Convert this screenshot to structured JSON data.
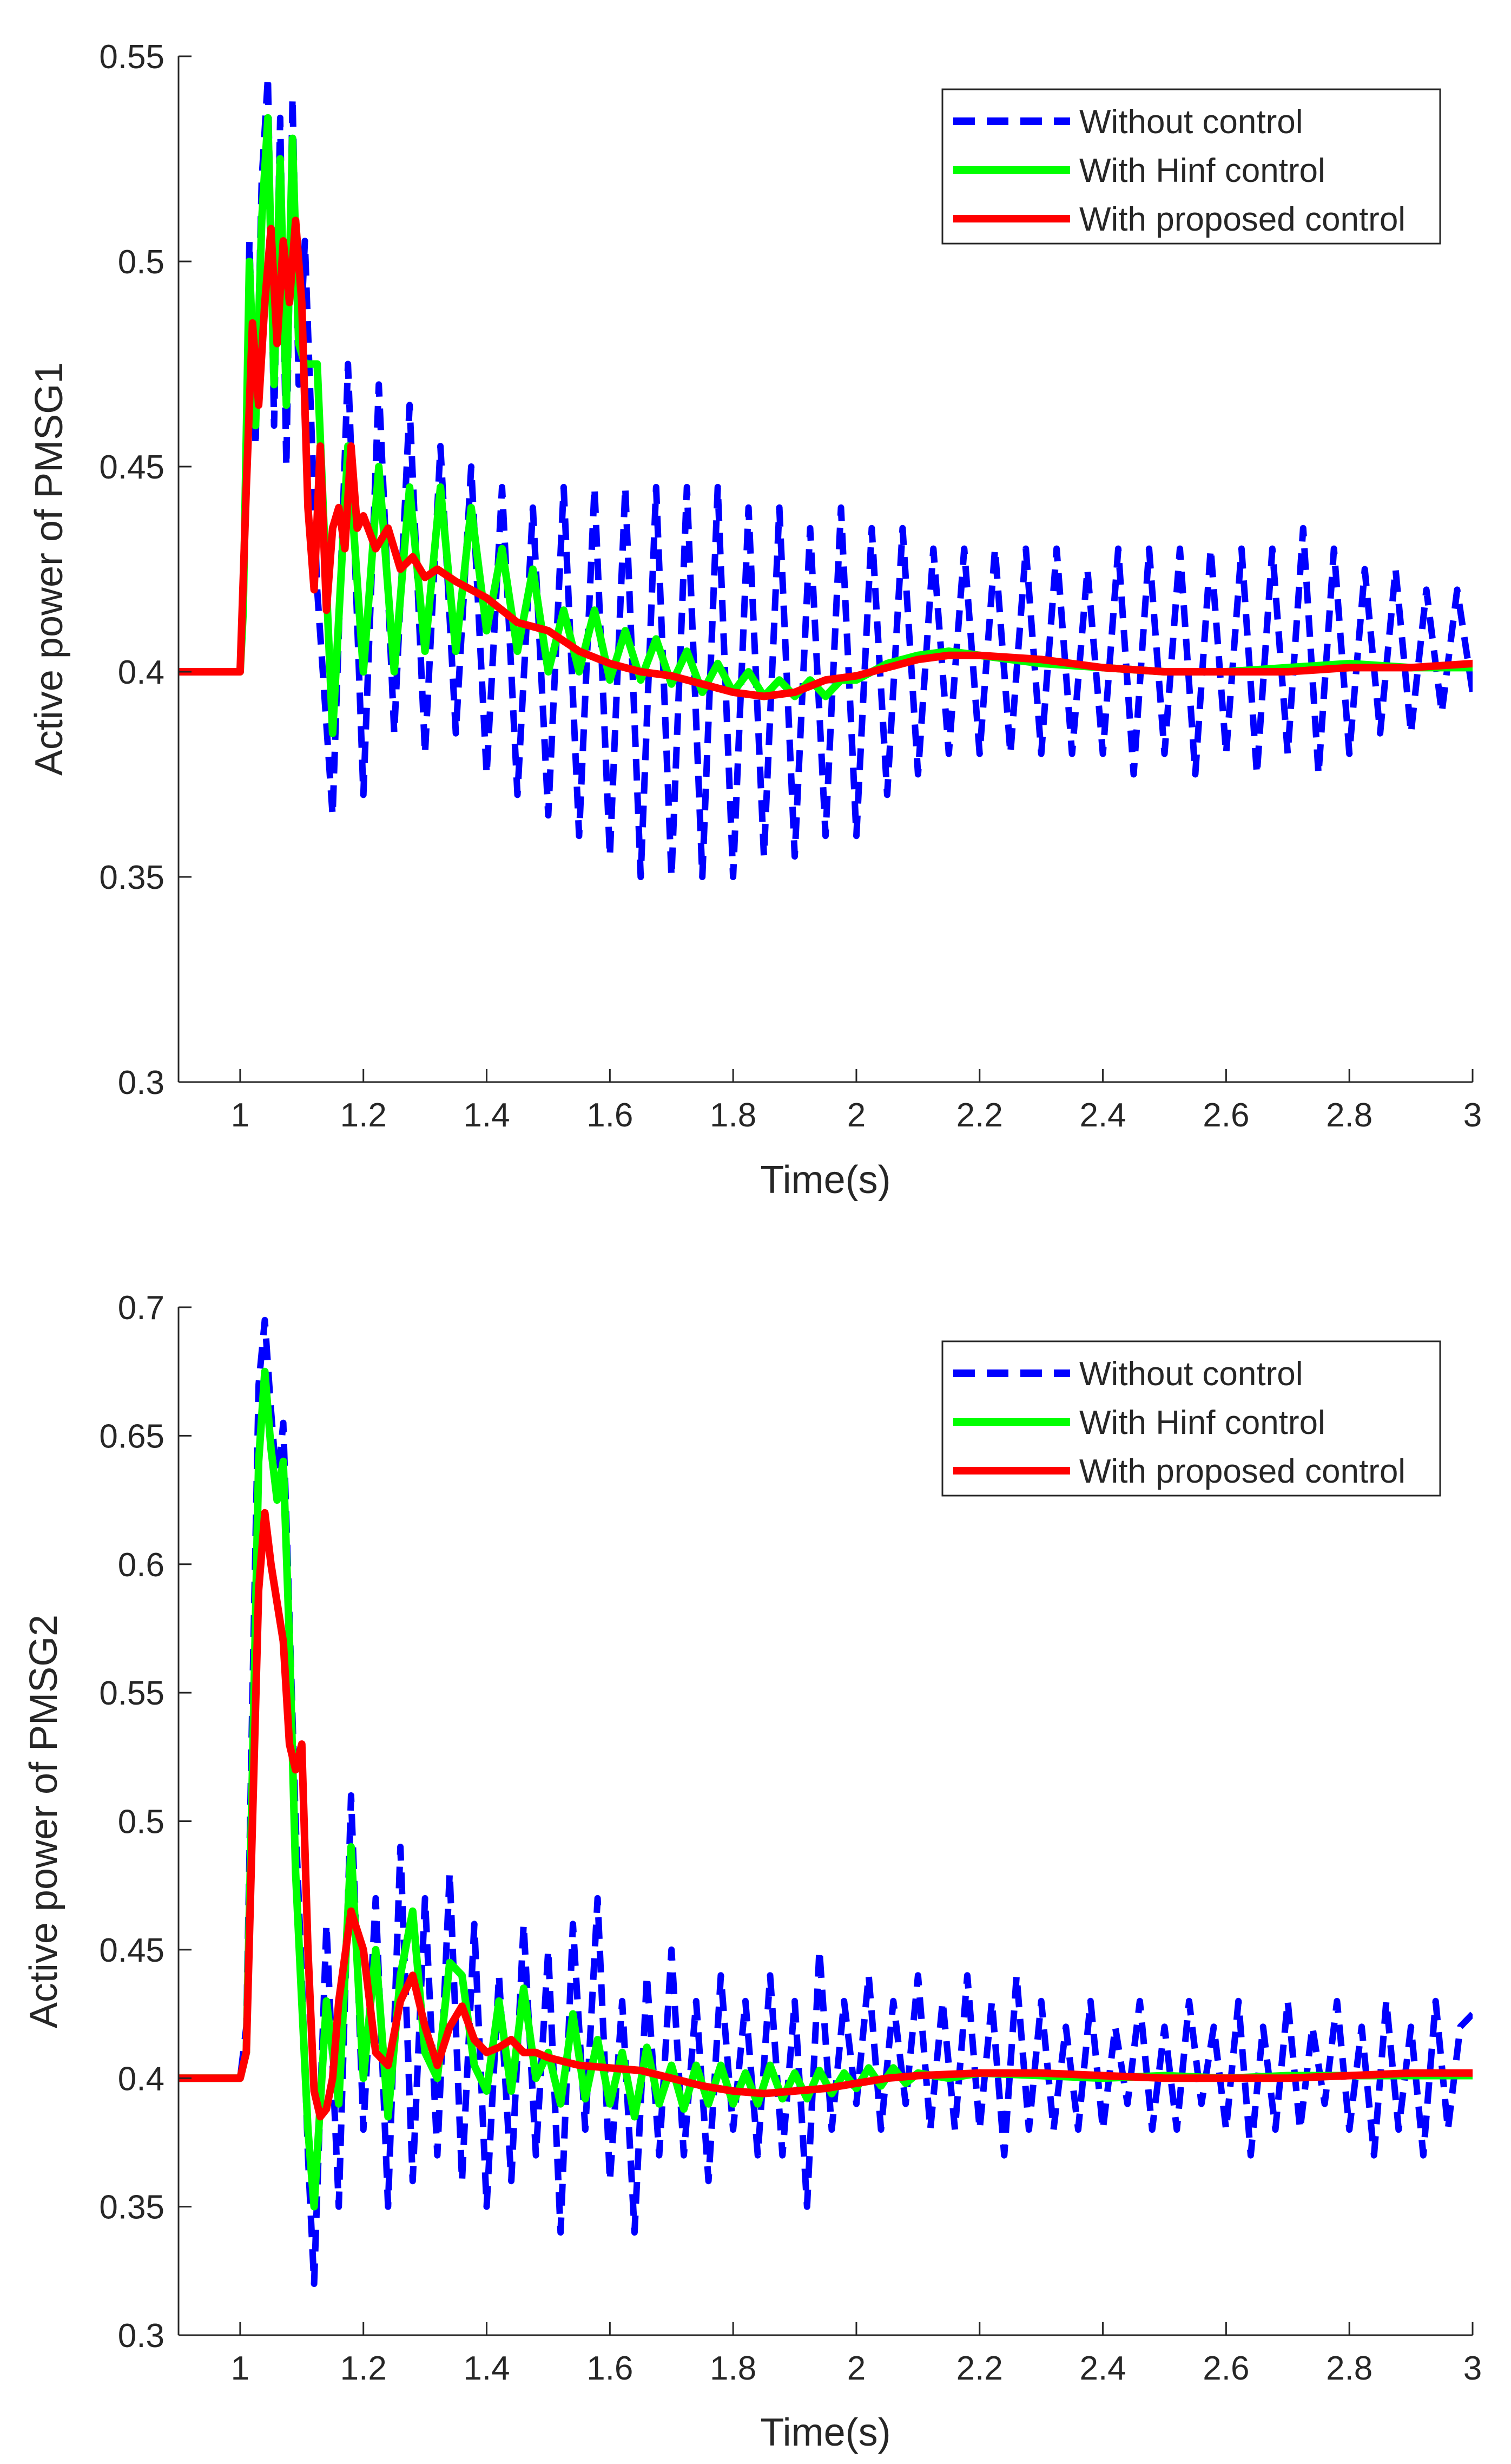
{
  "figure": {
    "background": "#ffffff"
  },
  "chart_data": [
    {
      "type": "line",
      "title": "",
      "xlabel": "Time(s)",
      "ylabel": "Active power of PMSG1",
      "xlim": [
        0.9,
        3.0
      ],
      "ylim": [
        0.3,
        0.55
      ],
      "xticks": [
        1,
        1.2,
        1.4,
        1.6,
        1.8,
        2,
        2.2,
        2.4,
        2.6,
        2.8,
        3
      ],
      "xtick_labels": [
        "1",
        "1.2",
        "1.4",
        "1.6",
        "1.8",
        "2",
        "2.2",
        "2.4",
        "2.6",
        "2.8",
        "3"
      ],
      "yticks": [
        0.3,
        0.35,
        0.4,
        0.45,
        0.5,
        0.55
      ],
      "ytick_labels": [
        "0.3",
        "0.35",
        "0.4",
        "0.45",
        "0.5",
        "0.55"
      ],
      "grid": false,
      "legend_position": "top-right",
      "series": [
        {
          "name": "Without control",
          "color": "#0000ff",
          "style": "dashed",
          "x": [
            0.9,
            1.0,
            1.005,
            1.015,
            1.025,
            1.035,
            1.045,
            1.055,
            1.065,
            1.075,
            1.085,
            1.095,
            1.105,
            1.125,
            1.15,
            1.175,
            1.2,
            1.225,
            1.25,
            1.275,
            1.3,
            1.325,
            1.35,
            1.375,
            1.4,
            1.425,
            1.45,
            1.475,
            1.5,
            1.525,
            1.55,
            1.575,
            1.6,
            1.625,
            1.65,
            1.675,
            1.7,
            1.725,
            1.75,
            1.775,
            1.8,
            1.825,
            1.85,
            1.875,
            1.9,
            1.925,
            1.95,
            1.975,
            2.0,
            2.025,
            2.05,
            2.075,
            2.1,
            2.125,
            2.15,
            2.175,
            2.2,
            2.225,
            2.25,
            2.275,
            2.3,
            2.325,
            2.35,
            2.375,
            2.4,
            2.425,
            2.45,
            2.475,
            2.5,
            2.525,
            2.55,
            2.575,
            2.6,
            2.625,
            2.65,
            2.675,
            2.7,
            2.725,
            2.75,
            2.775,
            2.8,
            2.825,
            2.85,
            2.875,
            2.9,
            2.925,
            2.95,
            2.975,
            3.0
          ],
          "y": [
            0.4,
            0.4,
            0.42,
            0.505,
            0.455,
            0.52,
            0.545,
            0.46,
            0.535,
            0.45,
            0.54,
            0.47,
            0.505,
            0.42,
            0.365,
            0.475,
            0.37,
            0.47,
            0.385,
            0.465,
            0.38,
            0.455,
            0.385,
            0.45,
            0.375,
            0.445,
            0.37,
            0.44,
            0.365,
            0.445,
            0.36,
            0.445,
            0.355,
            0.445,
            0.35,
            0.445,
            0.35,
            0.445,
            0.35,
            0.445,
            0.35,
            0.44,
            0.355,
            0.44,
            0.355,
            0.435,
            0.36,
            0.44,
            0.36,
            0.435,
            0.37,
            0.435,
            0.375,
            0.43,
            0.38,
            0.43,
            0.38,
            0.43,
            0.38,
            0.43,
            0.38,
            0.43,
            0.38,
            0.425,
            0.38,
            0.43,
            0.375,
            0.43,
            0.38,
            0.43,
            0.375,
            0.43,
            0.38,
            0.43,
            0.375,
            0.43,
            0.38,
            0.435,
            0.375,
            0.43,
            0.38,
            0.425,
            0.385,
            0.425,
            0.385,
            0.42,
            0.39,
            0.42,
            0.395
          ]
        },
        {
          "name": "With Hinf control",
          "color": "#00ff00",
          "style": "solid",
          "x": [
            0.9,
            1.0,
            1.005,
            1.015,
            1.025,
            1.035,
            1.045,
            1.055,
            1.065,
            1.075,
            1.085,
            1.095,
            1.105,
            1.125,
            1.15,
            1.175,
            1.2,
            1.225,
            1.25,
            1.275,
            1.3,
            1.325,
            1.35,
            1.375,
            1.4,
            1.425,
            1.45,
            1.475,
            1.5,
            1.525,
            1.55,
            1.575,
            1.6,
            1.625,
            1.65,
            1.675,
            1.7,
            1.725,
            1.75,
            1.775,
            1.8,
            1.825,
            1.85,
            1.875,
            1.9,
            1.925,
            1.95,
            1.975,
            2.0,
            2.05,
            2.1,
            2.15,
            2.2,
            2.25,
            2.3,
            2.4,
            2.5,
            2.6,
            2.7,
            2.8,
            2.9,
            3.0
          ],
          "y": [
            0.4,
            0.4,
            0.415,
            0.5,
            0.46,
            0.51,
            0.535,
            0.47,
            0.525,
            0.465,
            0.53,
            0.48,
            0.475,
            0.475,
            0.385,
            0.455,
            0.4,
            0.45,
            0.4,
            0.445,
            0.405,
            0.445,
            0.405,
            0.44,
            0.41,
            0.43,
            0.405,
            0.425,
            0.4,
            0.415,
            0.4,
            0.415,
            0.398,
            0.41,
            0.398,
            0.408,
            0.397,
            0.405,
            0.395,
            0.402,
            0.395,
            0.4,
            0.394,
            0.398,
            0.394,
            0.398,
            0.394,
            0.398,
            0.398,
            0.402,
            0.404,
            0.405,
            0.404,
            0.403,
            0.402,
            0.401,
            0.4,
            0.4,
            0.401,
            0.402,
            0.401,
            0.401
          ]
        },
        {
          "name": "With proposed control",
          "color": "#ff0000",
          "style": "solid",
          "x": [
            0.9,
            1.0,
            1.01,
            1.02,
            1.03,
            1.04,
            1.05,
            1.06,
            1.07,
            1.08,
            1.09,
            1.1,
            1.11,
            1.12,
            1.13,
            1.14,
            1.15,
            1.16,
            1.17,
            1.18,
            1.19,
            1.2,
            1.22,
            1.24,
            1.26,
            1.28,
            1.3,
            1.32,
            1.35,
            1.4,
            1.45,
            1.5,
            1.55,
            1.6,
            1.65,
            1.7,
            1.75,
            1.8,
            1.85,
            1.9,
            1.95,
            2.0,
            2.05,
            2.1,
            2.15,
            2.2,
            2.3,
            2.4,
            2.5,
            2.6,
            2.7,
            2.8,
            2.9,
            3.0
          ],
          "y": [
            0.4,
            0.4,
            0.445,
            0.485,
            0.465,
            0.49,
            0.508,
            0.48,
            0.505,
            0.49,
            0.51,
            0.49,
            0.44,
            0.42,
            0.455,
            0.415,
            0.435,
            0.44,
            0.43,
            0.455,
            0.435,
            0.438,
            0.43,
            0.435,
            0.425,
            0.428,
            0.423,
            0.425,
            0.422,
            0.418,
            0.412,
            0.41,
            0.405,
            0.402,
            0.4,
            0.399,
            0.397,
            0.395,
            0.394,
            0.395,
            0.398,
            0.399,
            0.401,
            0.403,
            0.404,
            0.404,
            0.403,
            0.401,
            0.4,
            0.4,
            0.4,
            0.401,
            0.401,
            0.402
          ]
        }
      ]
    },
    {
      "type": "line",
      "title": "",
      "xlabel": "Time(s)",
      "ylabel": "Active power of PMSG2",
      "xlim": [
        0.9,
        3.0
      ],
      "ylim": [
        0.3,
        0.7
      ],
      "xticks": [
        1,
        1.2,
        1.4,
        1.6,
        1.8,
        2,
        2.2,
        2.4,
        2.6,
        2.8,
        3
      ],
      "xtick_labels": [
        "1",
        "1.2",
        "1.4",
        "1.6",
        "1.8",
        "2",
        "2.2",
        "2.4",
        "2.6",
        "2.8",
        "3"
      ],
      "yticks": [
        0.3,
        0.35,
        0.4,
        0.45,
        0.5,
        0.55,
        0.6,
        0.65,
        0.7
      ],
      "ytick_labels": [
        "0.3",
        "0.35",
        "0.4",
        "0.45",
        "0.5",
        "0.55",
        "0.6",
        "0.65",
        "0.7"
      ],
      "grid": false,
      "legend_position": "top-right",
      "series": [
        {
          "name": "Without control",
          "color": "#0000ff",
          "style": "dashed",
          "x": [
            0.9,
            1.0,
            1.01,
            1.02,
            1.03,
            1.04,
            1.05,
            1.06,
            1.07,
            1.08,
            1.09,
            1.1,
            1.11,
            1.12,
            1.14,
            1.16,
            1.18,
            1.2,
            1.22,
            1.24,
            1.26,
            1.28,
            1.3,
            1.32,
            1.34,
            1.36,
            1.38,
            1.4,
            1.42,
            1.44,
            1.46,
            1.48,
            1.5,
            1.52,
            1.54,
            1.56,
            1.58,
            1.6,
            1.62,
            1.64,
            1.66,
            1.68,
            1.7,
            1.72,
            1.74,
            1.76,
            1.78,
            1.8,
            1.82,
            1.84,
            1.86,
            1.88,
            1.9,
            1.92,
            1.94,
            1.96,
            1.98,
            2.0,
            2.02,
            2.04,
            2.06,
            2.08,
            2.1,
            2.12,
            2.14,
            2.16,
            2.18,
            2.2,
            2.22,
            2.24,
            2.26,
            2.28,
            2.3,
            2.32,
            2.34,
            2.36,
            2.38,
            2.4,
            2.42,
            2.44,
            2.46,
            2.48,
            2.5,
            2.52,
            2.54,
            2.56,
            2.58,
            2.6,
            2.62,
            2.64,
            2.66,
            2.68,
            2.7,
            2.72,
            2.74,
            2.76,
            2.78,
            2.8,
            2.82,
            2.84,
            2.86,
            2.88,
            2.9,
            2.92,
            2.94,
            2.96,
            2.98,
            3.0
          ],
          "y": [
            0.4,
            0.4,
            0.42,
            0.55,
            0.67,
            0.695,
            0.66,
            0.63,
            0.655,
            0.58,
            0.5,
            0.44,
            0.37,
            0.32,
            0.46,
            0.35,
            0.51,
            0.38,
            0.47,
            0.35,
            0.49,
            0.36,
            0.47,
            0.37,
            0.48,
            0.36,
            0.46,
            0.35,
            0.44,
            0.36,
            0.46,
            0.37,
            0.45,
            0.34,
            0.46,
            0.38,
            0.47,
            0.36,
            0.43,
            0.34,
            0.44,
            0.37,
            0.45,
            0.37,
            0.43,
            0.36,
            0.44,
            0.38,
            0.43,
            0.37,
            0.44,
            0.37,
            0.43,
            0.35,
            0.45,
            0.38,
            0.43,
            0.39,
            0.44,
            0.38,
            0.43,
            0.39,
            0.44,
            0.38,
            0.43,
            0.38,
            0.44,
            0.38,
            0.43,
            0.37,
            0.44,
            0.38,
            0.43,
            0.38,
            0.42,
            0.38,
            0.43,
            0.38,
            0.42,
            0.39,
            0.43,
            0.38,
            0.42,
            0.38,
            0.43,
            0.39,
            0.42,
            0.38,
            0.43,
            0.37,
            0.42,
            0.38,
            0.43,
            0.38,
            0.42,
            0.39,
            0.43,
            0.38,
            0.42,
            0.37,
            0.43,
            0.38,
            0.42,
            0.37,
            0.43,
            0.38,
            0.42,
            0.425
          ]
        },
        {
          "name": "With Hinf control",
          "color": "#00ff00",
          "style": "solid",
          "x": [
            0.9,
            1.0,
            1.01,
            1.02,
            1.03,
            1.04,
            1.05,
            1.06,
            1.07,
            1.08,
            1.09,
            1.1,
            1.11,
            1.12,
            1.14,
            1.16,
            1.18,
            1.2,
            1.22,
            1.24,
            1.26,
            1.28,
            1.3,
            1.32,
            1.34,
            1.36,
            1.38,
            1.4,
            1.42,
            1.44,
            1.46,
            1.48,
            1.5,
            1.52,
            1.54,
            1.56,
            1.58,
            1.6,
            1.62,
            1.64,
            1.66,
            1.68,
            1.7,
            1.72,
            1.74,
            1.76,
            1.78,
            1.8,
            1.82,
            1.84,
            1.86,
            1.88,
            1.9,
            1.92,
            1.94,
            1.96,
            1.98,
            2.0,
            2.02,
            2.04,
            2.06,
            2.08,
            2.1,
            2.15,
            2.2,
            2.3,
            2.4,
            2.5,
            2.6,
            2.7,
            2.8,
            2.9,
            3.0
          ],
          "y": [
            0.4,
            0.4,
            0.41,
            0.52,
            0.64,
            0.675,
            0.645,
            0.625,
            0.64,
            0.57,
            0.48,
            0.43,
            0.38,
            0.35,
            0.43,
            0.39,
            0.49,
            0.4,
            0.45,
            0.385,
            0.44,
            0.465,
            0.41,
            0.4,
            0.445,
            0.44,
            0.405,
            0.395,
            0.43,
            0.395,
            0.435,
            0.4,
            0.41,
            0.39,
            0.425,
            0.392,
            0.415,
            0.39,
            0.41,
            0.385,
            0.412,
            0.39,
            0.405,
            0.388,
            0.405,
            0.39,
            0.405,
            0.39,
            0.402,
            0.39,
            0.405,
            0.392,
            0.402,
            0.392,
            0.403,
            0.394,
            0.402,
            0.396,
            0.404,
            0.397,
            0.404,
            0.398,
            0.402,
            0.4,
            0.402,
            0.401,
            0.4,
            0.401,
            0.4,
            0.401,
            0.401,
            0.401,
            0.401
          ]
        },
        {
          "name": "With proposed control",
          "color": "#ff0000",
          "style": "solid",
          "x": [
            0.9,
            1.0,
            1.01,
            1.02,
            1.03,
            1.04,
            1.05,
            1.06,
            1.07,
            1.08,
            1.09,
            1.1,
            1.11,
            1.12,
            1.13,
            1.14,
            1.15,
            1.16,
            1.18,
            1.2,
            1.22,
            1.24,
            1.26,
            1.28,
            1.3,
            1.32,
            1.34,
            1.36,
            1.38,
            1.4,
            1.42,
            1.44,
            1.46,
            1.48,
            1.5,
            1.55,
            1.6,
            1.65,
            1.7,
            1.75,
            1.8,
            1.85,
            1.9,
            1.95,
            2.0,
            2.05,
            2.1,
            2.2,
            2.3,
            2.4,
            2.5,
            2.6,
            2.7,
            2.8,
            2.9,
            3.0
          ],
          "y": [
            0.4,
            0.4,
            0.41,
            0.5,
            0.59,
            0.62,
            0.6,
            0.585,
            0.57,
            0.53,
            0.52,
            0.53,
            0.45,
            0.395,
            0.385,
            0.388,
            0.4,
            0.43,
            0.465,
            0.45,
            0.41,
            0.405,
            0.43,
            0.44,
            0.42,
            0.405,
            0.42,
            0.428,
            0.415,
            0.41,
            0.412,
            0.415,
            0.41,
            0.41,
            0.408,
            0.405,
            0.404,
            0.403,
            0.4,
            0.397,
            0.395,
            0.394,
            0.395,
            0.396,
            0.398,
            0.4,
            0.401,
            0.402,
            0.402,
            0.401,
            0.4,
            0.4,
            0.4,
            0.401,
            0.402,
            0.402
          ]
        }
      ]
    }
  ]
}
